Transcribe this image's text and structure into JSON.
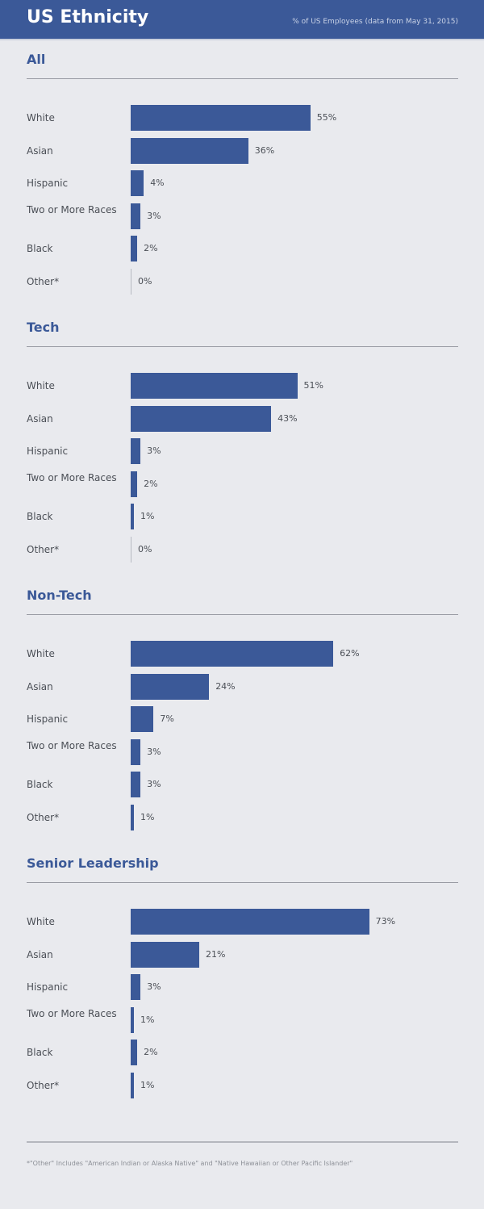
{
  "header": {
    "title": "US Ethnicity",
    "subtitle": "% of US Employees (data from May 31, 2015)"
  },
  "colors": {
    "header": "#3b5998",
    "bar": "#3b5998",
    "background": "#e9eaee"
  },
  "chart_data": {
    "type": "bar",
    "orientation": "horizontal",
    "unit": "%",
    "categories": [
      "White",
      "Asian",
      "Hispanic",
      "Two or More Races",
      "Black",
      "Other*"
    ],
    "panels": [
      {
        "title": "All",
        "values": [
          55,
          36,
          4,
          3,
          2,
          0
        ]
      },
      {
        "title": "Tech",
        "values": [
          51,
          43,
          3,
          2,
          1,
          0
        ]
      },
      {
        "title": "Non-Tech",
        "values": [
          62,
          24,
          7,
          3,
          3,
          1
        ]
      },
      {
        "title": "Senior Leadership",
        "values": [
          73,
          21,
          3,
          1,
          2,
          1
        ]
      }
    ]
  },
  "footnote": "*\"Other\" Includes \"American Indian or Alaska Native\" and \"Native Hawaiian or Other Pacific Islander\""
}
